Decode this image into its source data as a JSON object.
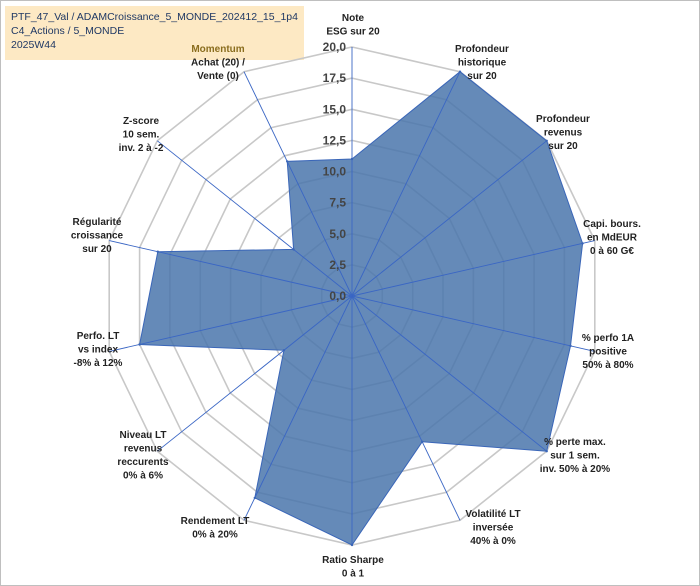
{
  "title_box": {
    "line1": "PTF_47_Val / ADAMCroissance_5_MONDE_202412_15_1p4",
    "line2": "C4_Actions / 5_MONDE",
    "line3": "2025W44"
  },
  "chart_data": {
    "type": "radar",
    "rlim": [
      0,
      20
    ],
    "ticks": [
      "0,0",
      "2,5",
      "5,0",
      "7,5",
      "10,0",
      "12,5",
      "15,0",
      "17,5",
      "20,0"
    ],
    "tick_values": [
      0,
      2.5,
      5,
      7.5,
      10,
      12.5,
      15,
      17.5,
      20
    ],
    "axes": [
      {
        "lines": [
          "Note",
          "ESG sur 20"
        ],
        "value": 11
      },
      {
        "lines": [
          "Profondeur",
          "historique",
          "sur 20"
        ],
        "value": 20
      },
      {
        "lines": [
          "Profondeur",
          "revenus",
          "sur 20"
        ],
        "value": 20
      },
      {
        "lines": [
          "Capi. bours.",
          "en MdEUR",
          "0 à 60 G€"
        ],
        "value": 19
      },
      {
        "lines": [
          "% perfo 1A",
          "positive",
          "50% à 80%"
        ],
        "value": 18
      },
      {
        "lines": [
          "% perte max.",
          "sur 1 sem.",
          "inv. 50% à 20%"
        ],
        "value": 20
      },
      {
        "lines": [
          "Volatilité LT",
          "inversée",
          "40% à 0%"
        ],
        "value": 13
      },
      {
        "lines": [
          "Ratio Sharpe",
          "0 à 1"
        ],
        "value": 20
      },
      {
        "lines": [
          "Rendement LT",
          "0% à 20%"
        ],
        "value": 18
      },
      {
        "lines": [
          "Niveau LT",
          "revenus",
          "reccurents",
          "0% à 6%"
        ],
        "value": 7
      },
      {
        "lines": [
          "Perfo. LT",
          "vs index",
          "-8% à 12%"
        ],
        "value": 17.5
      },
      {
        "lines": [
          "Régularité",
          "croissance",
          "sur 20"
        ],
        "value": 16
      },
      {
        "lines": [
          "Z-score",
          "10 sem.",
          "inv. 2 à -2"
        ],
        "value": 6
      },
      {
        "lines": [
          "Momentum",
          "Achat (20) /",
          "Vente (0)"
        ],
        "value": 12
      }
    ],
    "colors": {
      "fill": "#4a76ab",
      "stroke": "#3a66b8",
      "grid": "#c8c8c8",
      "spoke": "#3a66c4",
      "momentum": "#8a6d1e"
    }
  }
}
